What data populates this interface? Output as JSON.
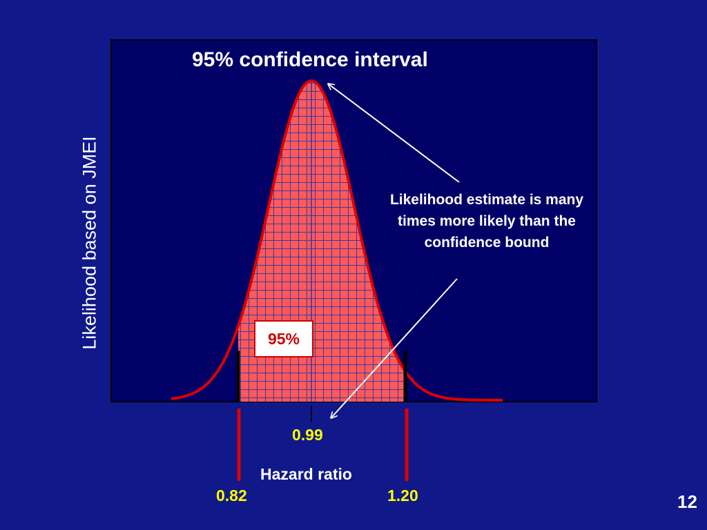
{
  "slide": {
    "title": "95% confidence interval",
    "y_axis_label": "Likelihood based on JMEI",
    "x_axis_label": "Hazard ratio",
    "annotation": "Likelihood estimate is many times more likely than the confidence bound",
    "coverage_label": "95%",
    "point_estimate_label": "0.99",
    "lower_bound_label": "0.82",
    "upper_bound_label": "1.20",
    "page_number": "12"
  },
  "colors": {
    "background": "#10188a",
    "plot_area": "#000066",
    "curve": "#dd0000",
    "fill": "#ff5555",
    "grid": "#3333aa",
    "bounds_text": "#ffff00",
    "text": "#ffffff"
  },
  "icons": [
    "arrow-to-peak-icon",
    "arrow-to-estimate-icon"
  ]
}
